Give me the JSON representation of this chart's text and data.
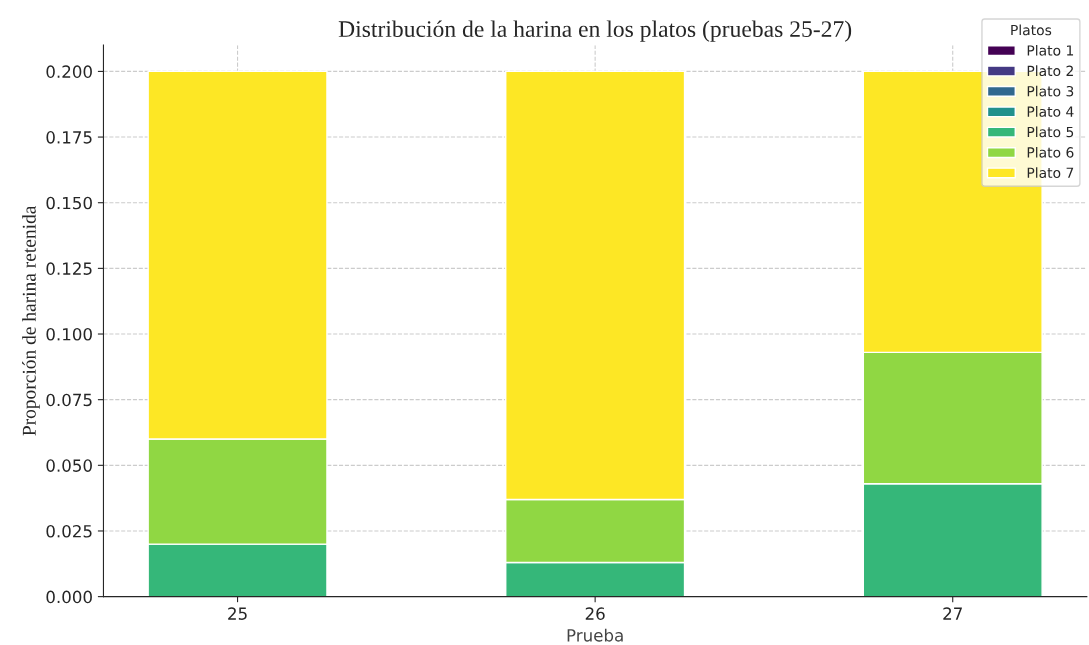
{
  "chart_data": {
    "type": "bar",
    "title": "Distribución de la harina en los platos (pruebas 25-27)",
    "xlabel": "Prueba",
    "ylabel": "Proporción de harina retenida",
    "legend_title": "Platos",
    "categories": [
      "25",
      "26",
      "27"
    ],
    "stacked": true,
    "series": [
      {
        "name": "Plato 1",
        "color": "#440154",
        "values": [
          0,
          0,
          0
        ]
      },
      {
        "name": "Plato 2",
        "color": "#443983",
        "values": [
          0,
          0,
          0
        ]
      },
      {
        "name": "Plato 3",
        "color": "#31688e",
        "values": [
          0,
          0,
          0
        ]
      },
      {
        "name": "Plato 4",
        "color": "#21918c",
        "values": [
          0,
          0,
          0
        ]
      },
      {
        "name": "Plato 5",
        "color": "#35b779",
        "values": [
          0.02,
          0.013,
          0.043
        ]
      },
      {
        "name": "Plato 6",
        "color": "#90d743",
        "values": [
          0.04,
          0.024,
          0.05
        ]
      },
      {
        "name": "Plato 7",
        "color": "#fde725",
        "values": [
          0.14,
          0.163,
          0.107
        ]
      }
    ],
    "ylim": [
      0,
      0.21
    ],
    "yticks": [
      {
        "value": 0,
        "label": "0.000"
      },
      {
        "value": 0.025,
        "label": "0.025"
      },
      {
        "value": 0.05,
        "label": "0.050"
      },
      {
        "value": 0.075,
        "label": "0.075"
      },
      {
        "value": 0.1,
        "label": "0.100"
      },
      {
        "value": 0.125,
        "label": "0.125"
      },
      {
        "value": 0.15,
        "label": "0.150"
      },
      {
        "value": 0.175,
        "label": "0.175"
      },
      {
        "value": 0.2,
        "label": "0.200"
      }
    ],
    "grid": true,
    "legend": "top right"
  }
}
